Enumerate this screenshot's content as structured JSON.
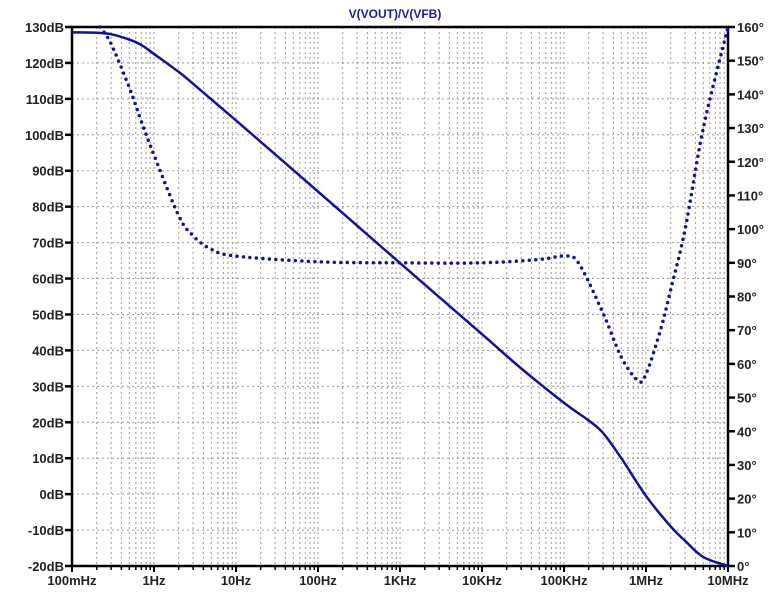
{
  "chart_data": {
    "type": "line",
    "title": "V(VOUT)/V(VFB)",
    "x_scale": "log",
    "xlim": [
      0.1,
      10000000
    ],
    "x_ticks": [
      0.1,
      1,
      10,
      100,
      1000,
      10000,
      100000,
      1000000,
      10000000
    ],
    "x_tick_labels": [
      "100mHz",
      "1Hz",
      "10Hz",
      "100Hz",
      "1KHz",
      "10KHz",
      "100KHz",
      "1MHz",
      "10MHz"
    ],
    "ylim_left": [
      -20,
      130
    ],
    "y_left_ticks": [
      130,
      120,
      110,
      100,
      90,
      80,
      70,
      60,
      50,
      40,
      30,
      20,
      10,
      0,
      -10,
      -20
    ],
    "y_left_tick_labels": [
      "130dB",
      "120dB",
      "110dB",
      "100dB",
      "90dB",
      "80dB",
      "70dB",
      "60dB",
      "50dB",
      "40dB",
      "30dB",
      "20dB",
      "10dB",
      "0dB",
      "-10dB",
      "-20dB"
    ],
    "ylim_right": [
      0,
      160
    ],
    "y_right_ticks": [
      160,
      150,
      140,
      130,
      120,
      110,
      100,
      90,
      80,
      70,
      60,
      50,
      40,
      30,
      20,
      10,
      0
    ],
    "y_right_tick_labels": [
      "160°",
      "150°",
      "140°",
      "130°",
      "120°",
      "110°",
      "100°",
      "90°",
      "80°",
      "70°",
      "60°",
      "50°",
      "40°",
      "30°",
      "20°",
      "10°",
      "0°"
    ],
    "grid": true,
    "color": "#10109a",
    "series": [
      {
        "axis": "left",
        "style": "solid",
        "x": [
          0.1,
          0.2,
          0.3,
          0.5,
          0.7,
          1,
          2,
          3,
          10,
          100,
          1000,
          10000,
          30000,
          100000,
          200000,
          300000,
          500000,
          1000000,
          2000000,
          3000000,
          5000000,
          10000000
        ],
        "y": [
          128.5,
          128.4,
          128,
          126.5,
          125,
          122.5,
          117.5,
          114.2,
          104,
          84.2,
          64.3,
          44.5,
          35,
          25.4,
          20.5,
          17,
          10,
          -0.5,
          -9,
          -13,
          -17.5,
          -20
        ]
      },
      {
        "axis": "right",
        "style": "dotted",
        "x": [
          0.22,
          0.3,
          0.5,
          0.7,
          1,
          2,
          3,
          5,
          10,
          100,
          1000,
          10000,
          50000,
          100000,
          150000,
          300000,
          500000,
          800000,
          1000000,
          1500000,
          2000000,
          3000000,
          5000000,
          10000000
        ],
        "y": [
          160,
          155,
          142,
          132,
          122,
          104,
          98,
          94,
          92,
          90.3,
          90,
          90,
          91,
          92,
          90,
          75,
          62,
          55,
          57,
          70,
          82,
          100,
          130,
          160
        ]
      }
    ]
  }
}
